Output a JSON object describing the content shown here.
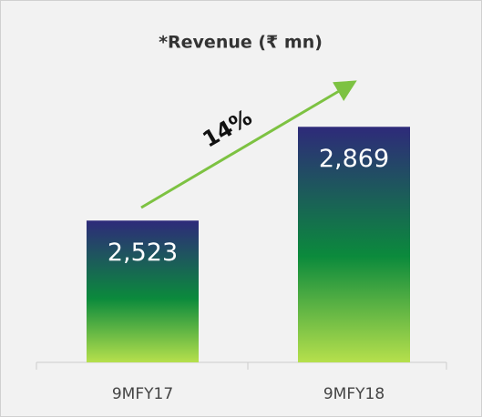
{
  "chart_data": {
    "type": "bar",
    "title": "*Revenue (₹ mn)",
    "categories": [
      "9MFY17",
      "9MFY18"
    ],
    "values": [
      2523,
      2869
    ],
    "value_labels": [
      "2,523",
      "2,869"
    ],
    "gradient": [
      "#2e2a7a",
      "#0b8a3c",
      "#b6e04c"
    ],
    "ylim": [
      2000,
      3100
    ],
    "annotation": "14%",
    "arrow_color": "#7dc242"
  }
}
